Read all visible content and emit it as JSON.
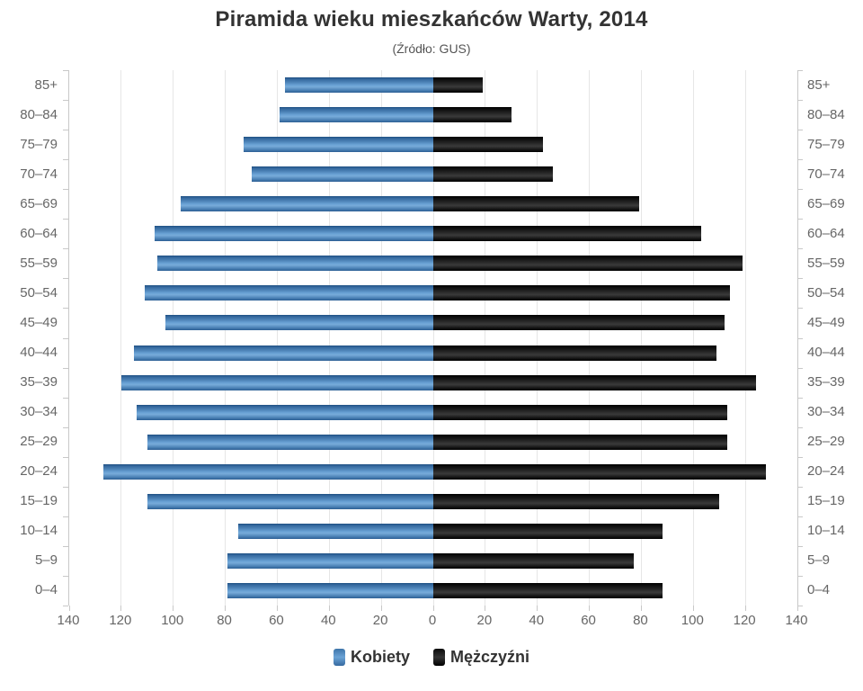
{
  "title": "Piramida wieku mieszkańców Warty, 2014",
  "subtitle": "(Źródło: GUS)",
  "legend": {
    "women": "Kobiety",
    "men": "Mężczyźni"
  },
  "colors": {
    "women_bar": "#4a80b4",
    "men_bar": "#1a1a1a",
    "gridline": "#e6e6e6",
    "axis_line": "#c8c8c8",
    "axis_text": "#666666",
    "title_text": "#333333"
  },
  "chart_data": {
    "type": "bar",
    "variant": "population-pyramid",
    "title": "Piramida wieku mieszkańców Warty, 2014",
    "subtitle": "(Źródło: GUS)",
    "categories": [
      "85+",
      "80–84",
      "75–79",
      "70–74",
      "65–69",
      "60–64",
      "55–59",
      "50–54",
      "45–49",
      "40–44",
      "35–39",
      "30–34",
      "25–29",
      "20–24",
      "15–19",
      "10–14",
      "5–9",
      "0–4"
    ],
    "series": [
      {
        "name": "Kobiety",
        "side": "left",
        "values": [
          57,
          59,
          73,
          70,
          97,
          107,
          106,
          111,
          103,
          115,
          120,
          114,
          110,
          127,
          110,
          75,
          79,
          79
        ]
      },
      {
        "name": "Mężczyźni",
        "side": "right",
        "values": [
          19,
          30,
          42,
          46,
          79,
          103,
          119,
          114,
          112,
          109,
          124,
          113,
          113,
          128,
          110,
          88,
          77,
          88
        ]
      }
    ],
    "xlim": [
      0,
      140
    ],
    "tick_step": 20,
    "tick_labels": [
      "140",
      "120",
      "100",
      "80",
      "60",
      "40",
      "20",
      "0",
      "20",
      "40",
      "60",
      "80",
      "100",
      "120",
      "140"
    ],
    "grid": true,
    "legend_position": "bottom"
  }
}
